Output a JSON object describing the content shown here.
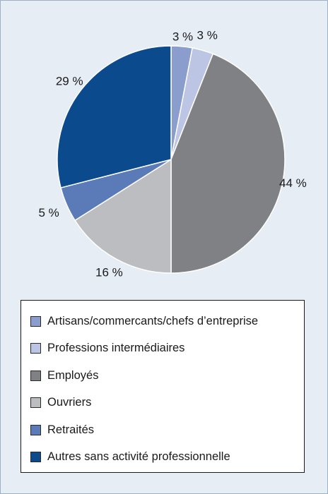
{
  "chart_data": {
    "type": "pie",
    "slices": [
      {
        "name": "Artisans/commercants/chefs d’entreprise",
        "value": 3,
        "label": "3 %",
        "color": "#8a9dcd"
      },
      {
        "name": "Professions intermédiaires",
        "value": 3,
        "label": "3 %",
        "color": "#bcc5e3"
      },
      {
        "name": "Employés",
        "value": 44,
        "label": "44 %",
        "color": "#808184"
      },
      {
        "name": "Ouvriers",
        "value": 16,
        "label": "16 %",
        "color": "#bcbdc0"
      },
      {
        "name": "Retraités",
        "value": 5,
        "label": "5 %",
        "color": "#5a7ab8"
      },
      {
        "name": "Autres sans activité professionnelle",
        "value": 29,
        "label": "29 %",
        "color": "#0b4a8c"
      }
    ],
    "legend_position": "bottom"
  },
  "legend": {
    "items": [
      {
        "label": "Artisans/commercants/chefs d’entreprise",
        "color": "#8a9dcd"
      },
      {
        "label": "Professions intermédiaires",
        "color": "#bcc5e3"
      },
      {
        "label": "Employés",
        "color": "#808184"
      },
      {
        "label": "Ouvriers",
        "color": "#bcbdc0"
      },
      {
        "label": "Retraités",
        "color": "#5a7ab8"
      },
      {
        "label": "Autres sans activité professionnelle",
        "color": "#0b4a8c"
      }
    ]
  }
}
